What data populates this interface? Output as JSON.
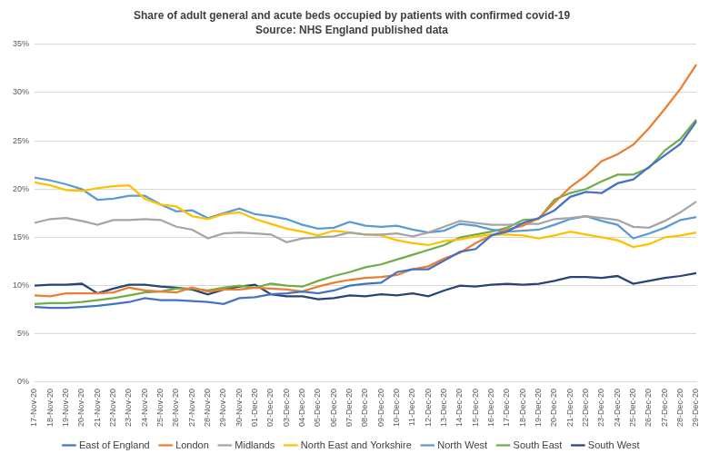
{
  "chart_data": {
    "type": "line",
    "title": "Share of adult general and acute beds occupied by patients with confirmed covid-19",
    "subtitle": "Source: NHS England published data",
    "categories": [
      "17-Nov-20",
      "18-Nov-20",
      "19-Nov-20",
      "20-Nov-20",
      "21-Nov-20",
      "22-Nov-20",
      "23-Nov-20",
      "24-Nov-20",
      "25-Nov-20",
      "26-Nov-20",
      "27-Nov-20",
      "28-Nov-20",
      "29-Nov-20",
      "30-Nov-20",
      "01-Dec-20",
      "02-Dec-20",
      "03-Dec-20",
      "04-Dec-20",
      "05-Dec-20",
      "06-Dec-20",
      "07-Dec-20",
      "08-Dec-20",
      "09-Dec-20",
      "10-Dec-20",
      "11-Dec-20",
      "12-Dec-20",
      "13-Dec-20",
      "14-Dec-20",
      "15-Dec-20",
      "16-Dec-20",
      "17-Dec-20",
      "18-Dec-20",
      "19-Dec-20",
      "20-Dec-20",
      "21-Dec-20",
      "22-Dec-20",
      "23-Dec-20",
      "24-Dec-20",
      "25-Dec-20",
      "26-Dec-20",
      "27-Dec-20",
      "28-Dec-20",
      "29-Dec-20"
    ],
    "series": [
      {
        "name": "East of England",
        "color": "#4472c4",
        "values": [
          7.8,
          7.7,
          7.7,
          7.8,
          7.9,
          8.1,
          8.3,
          8.7,
          8.5,
          8.5,
          8.4,
          8.3,
          8.1,
          8.7,
          8.8,
          9.1,
          9.2,
          9.4,
          9.2,
          9.5,
          10.0,
          10.2,
          10.3,
          11.4,
          11.7,
          11.7,
          12.6,
          13.5,
          13.8,
          15.2,
          15.6,
          16.5,
          17.0,
          17.8,
          19.2,
          19.7,
          19.6,
          20.6,
          21.0,
          22.3,
          23.5,
          24.7,
          27.0
        ]
      },
      {
        "name": "London",
        "color": "#ed7d31",
        "values": [
          9.0,
          8.9,
          9.2,
          9.2,
          9.2,
          9.3,
          9.8,
          9.5,
          9.4,
          9.3,
          9.8,
          9.4,
          9.6,
          9.6,
          9.8,
          9.7,
          9.6,
          9.4,
          9.9,
          10.3,
          10.6,
          10.8,
          10.9,
          11.1,
          11.7,
          12.0,
          12.8,
          13.4,
          14.4,
          15.2,
          15.8,
          16.2,
          17.0,
          18.6,
          20.2,
          21.4,
          22.9,
          23.6,
          24.6,
          26.3,
          28.3,
          30.4,
          32.9
        ]
      },
      {
        "name": "Midlands",
        "color": "#a5a5a5",
        "values": [
          16.5,
          16.9,
          17.0,
          16.7,
          16.3,
          16.8,
          16.8,
          16.9,
          16.8,
          16.1,
          15.8,
          14.9,
          15.4,
          15.5,
          15.4,
          15.3,
          14.5,
          14.9,
          15.0,
          15.1,
          15.5,
          15.3,
          15.3,
          15.4,
          15.1,
          15.5,
          16.1,
          16.7,
          16.5,
          16.3,
          16.3,
          16.4,
          16.4,
          16.9,
          17.0,
          17.2,
          17.0,
          16.8,
          16.1,
          16.0,
          16.7,
          17.6,
          18.7
        ]
      },
      {
        "name": "North East and Yorkshire",
        "color": "#ffc000",
        "values": [
          20.7,
          20.4,
          19.9,
          19.8,
          20.1,
          20.3,
          20.4,
          19.0,
          18.4,
          18.2,
          17.2,
          16.9,
          17.4,
          17.6,
          16.9,
          16.4,
          15.9,
          15.6,
          15.2,
          15.7,
          15.5,
          15.3,
          15.2,
          14.7,
          14.4,
          14.2,
          14.6,
          14.8,
          15.1,
          15.3,
          15.3,
          15.2,
          14.9,
          15.2,
          15.6,
          15.3,
          15.0,
          14.7,
          14.0,
          14.3,
          15.0,
          15.2,
          15.5
        ]
      },
      {
        "name": "North West",
        "color": "#5b9bd5",
        "values": [
          21.2,
          20.9,
          20.5,
          20.0,
          18.9,
          19.0,
          19.3,
          19.3,
          18.4,
          17.7,
          17.8,
          17.0,
          17.5,
          18.0,
          17.4,
          17.2,
          16.9,
          16.3,
          15.9,
          16.0,
          16.6,
          16.2,
          16.1,
          16.2,
          15.8,
          15.5,
          15.7,
          16.4,
          16.2,
          15.8,
          15.6,
          15.7,
          15.8,
          16.3,
          16.9,
          17.2,
          16.7,
          16.3,
          14.9,
          15.4,
          16.0,
          16.8,
          17.1
        ]
      },
      {
        "name": "South East",
        "color": "#70ad47",
        "values": [
          8.1,
          8.2,
          8.2,
          8.3,
          8.5,
          8.7,
          9.0,
          9.3,
          9.4,
          9.7,
          9.7,
          9.5,
          9.8,
          10.0,
          9.8,
          10.2,
          10.0,
          9.9,
          10.5,
          11.0,
          11.4,
          11.9,
          12.2,
          12.7,
          13.2,
          13.7,
          14.2,
          15.0,
          15.3,
          15.6,
          16.0,
          16.8,
          16.9,
          18.9,
          19.6,
          20.0,
          20.8,
          21.5,
          21.5,
          22.2,
          24.0,
          25.2,
          27.2
        ]
      },
      {
        "name": "South West",
        "color": "#264478",
        "values": [
          10.0,
          10.1,
          10.1,
          10.2,
          9.2,
          9.7,
          10.1,
          10.1,
          9.9,
          9.8,
          9.6,
          9.1,
          9.6,
          9.9,
          10.1,
          9.1,
          8.9,
          8.9,
          8.6,
          8.7,
          9.0,
          8.9,
          9.1,
          9.0,
          9.2,
          8.9,
          9.5,
          10.0,
          9.9,
          10.1,
          10.2,
          10.1,
          10.2,
          10.5,
          10.9,
          10.9,
          10.8,
          11.0,
          10.2,
          10.5,
          10.8,
          11.0,
          11.3
        ]
      }
    ],
    "ylim": [
      0,
      35
    ],
    "yticks": [
      {
        "value": 0,
        "label": "0%"
      },
      {
        "value": 5,
        "label": "5%"
      },
      {
        "value": 10,
        "label": "10%"
      },
      {
        "value": 15,
        "label": "15%"
      },
      {
        "value": 20,
        "label": "20%"
      },
      {
        "value": 25,
        "label": "25%"
      },
      {
        "value": 30,
        "label": "30%"
      },
      {
        "value": 35,
        "label": "35%"
      }
    ],
    "grid": true,
    "legend": "bottom"
  }
}
